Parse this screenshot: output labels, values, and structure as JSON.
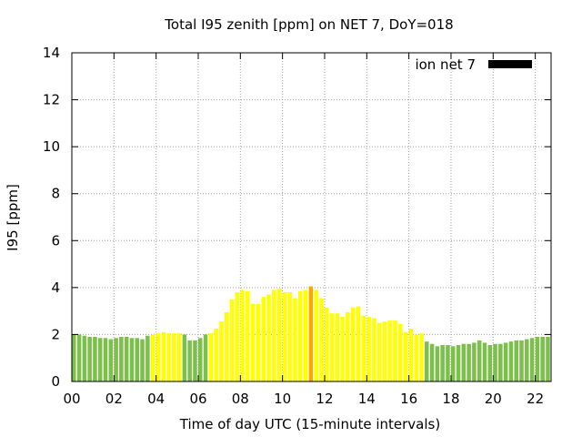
{
  "chart_data": {
    "type": "bar",
    "title": "Total I95 zenith [ppm] on NET 7, DoY=018",
    "xlabel": "Time of day UTC (15-minute intervals)",
    "ylabel": "I95 [ppm]",
    "xlim": [
      0,
      22.75
    ],
    "ylim": [
      0,
      14
    ],
    "x_ticks": [
      "00",
      "02",
      "04",
      "06",
      "08",
      "10",
      "12",
      "14",
      "16",
      "18",
      "20",
      "22"
    ],
    "y_ticks": [
      "0",
      "2",
      "4",
      "6",
      "8",
      "10",
      "12",
      "14"
    ],
    "grid": true,
    "legend": {
      "label": "ion net 7",
      "color": "#000000",
      "position": "top-right"
    },
    "colors": {
      "green": "#7cbf4a",
      "yellow": "#ffff00",
      "orange": "#ffa500"
    },
    "bar_interval_hours": 0.25,
    "bars": [
      {
        "x": 0.0,
        "value": 2.0,
        "color": "green"
      },
      {
        "x": 0.25,
        "value": 2.0,
        "color": "green"
      },
      {
        "x": 0.5,
        "value": 1.95,
        "color": "green"
      },
      {
        "x": 0.75,
        "value": 1.9,
        "color": "green"
      },
      {
        "x": 1.0,
        "value": 1.9,
        "color": "green"
      },
      {
        "x": 1.25,
        "value": 1.85,
        "color": "green"
      },
      {
        "x": 1.5,
        "value": 1.85,
        "color": "green"
      },
      {
        "x": 1.75,
        "value": 1.8,
        "color": "green"
      },
      {
        "x": 2.0,
        "value": 1.85,
        "color": "green"
      },
      {
        "x": 2.25,
        "value": 1.9,
        "color": "green"
      },
      {
        "x": 2.5,
        "value": 1.9,
        "color": "green"
      },
      {
        "x": 2.75,
        "value": 1.85,
        "color": "green"
      },
      {
        "x": 3.0,
        "value": 1.85,
        "color": "green"
      },
      {
        "x": 3.25,
        "value": 1.8,
        "color": "green"
      },
      {
        "x": 3.5,
        "value": 1.95,
        "color": "green"
      },
      {
        "x": 3.75,
        "value": 2.0,
        "color": "yellow"
      },
      {
        "x": 4.0,
        "value": 2.05,
        "color": "yellow"
      },
      {
        "x": 4.25,
        "value": 2.1,
        "color": "yellow"
      },
      {
        "x": 4.5,
        "value": 2.05,
        "color": "yellow"
      },
      {
        "x": 4.75,
        "value": 2.05,
        "color": "yellow"
      },
      {
        "x": 5.0,
        "value": 2.05,
        "color": "yellow"
      },
      {
        "x": 5.25,
        "value": 2.0,
        "color": "green"
      },
      {
        "x": 5.5,
        "value": 1.75,
        "color": "green"
      },
      {
        "x": 5.75,
        "value": 1.75,
        "color": "green"
      },
      {
        "x": 6.0,
        "value": 1.85,
        "color": "green"
      },
      {
        "x": 6.25,
        "value": 2.0,
        "color": "green"
      },
      {
        "x": 6.5,
        "value": 2.05,
        "color": "yellow"
      },
      {
        "x": 6.75,
        "value": 2.25,
        "color": "yellow"
      },
      {
        "x": 7.0,
        "value": 2.55,
        "color": "yellow"
      },
      {
        "x": 7.25,
        "value": 2.95,
        "color": "yellow"
      },
      {
        "x": 7.5,
        "value": 3.5,
        "color": "yellow"
      },
      {
        "x": 7.75,
        "value": 3.8,
        "color": "yellow"
      },
      {
        "x": 8.0,
        "value": 3.9,
        "color": "yellow"
      },
      {
        "x": 8.25,
        "value": 3.85,
        "color": "yellow"
      },
      {
        "x": 8.5,
        "value": 3.3,
        "color": "yellow"
      },
      {
        "x": 8.75,
        "value": 3.3,
        "color": "yellow"
      },
      {
        "x": 9.0,
        "value": 3.6,
        "color": "yellow"
      },
      {
        "x": 9.25,
        "value": 3.7,
        "color": "yellow"
      },
      {
        "x": 9.5,
        "value": 3.9,
        "color": "yellow"
      },
      {
        "x": 9.75,
        "value": 3.95,
        "color": "yellow"
      },
      {
        "x": 10.0,
        "value": 3.8,
        "color": "yellow"
      },
      {
        "x": 10.25,
        "value": 3.8,
        "color": "yellow"
      },
      {
        "x": 10.5,
        "value": 3.55,
        "color": "yellow"
      },
      {
        "x": 10.75,
        "value": 3.85,
        "color": "yellow"
      },
      {
        "x": 11.0,
        "value": 3.9,
        "color": "yellow"
      },
      {
        "x": 11.25,
        "value": 4.05,
        "color": "orange"
      },
      {
        "x": 11.5,
        "value": 3.9,
        "color": "yellow"
      },
      {
        "x": 11.75,
        "value": 3.55,
        "color": "yellow"
      },
      {
        "x": 12.0,
        "value": 3.15,
        "color": "yellow"
      },
      {
        "x": 12.25,
        "value": 2.9,
        "color": "yellow"
      },
      {
        "x": 12.5,
        "value": 2.9,
        "color": "yellow"
      },
      {
        "x": 12.75,
        "value": 2.75,
        "color": "yellow"
      },
      {
        "x": 13.0,
        "value": 2.95,
        "color": "yellow"
      },
      {
        "x": 13.25,
        "value": 3.15,
        "color": "yellow"
      },
      {
        "x": 13.5,
        "value": 3.2,
        "color": "yellow"
      },
      {
        "x": 13.75,
        "value": 2.8,
        "color": "yellow"
      },
      {
        "x": 14.0,
        "value": 2.75,
        "color": "yellow"
      },
      {
        "x": 14.25,
        "value": 2.7,
        "color": "yellow"
      },
      {
        "x": 14.5,
        "value": 2.5,
        "color": "yellow"
      },
      {
        "x": 14.75,
        "value": 2.55,
        "color": "yellow"
      },
      {
        "x": 15.0,
        "value": 2.6,
        "color": "yellow"
      },
      {
        "x": 15.25,
        "value": 2.6,
        "color": "yellow"
      },
      {
        "x": 15.5,
        "value": 2.45,
        "color": "yellow"
      },
      {
        "x": 15.75,
        "value": 2.1,
        "color": "yellow"
      },
      {
        "x": 16.0,
        "value": 2.25,
        "color": "yellow"
      },
      {
        "x": 16.25,
        "value": 2.0,
        "color": "yellow"
      },
      {
        "x": 16.5,
        "value": 2.05,
        "color": "yellow"
      },
      {
        "x": 16.75,
        "value": 1.7,
        "color": "green"
      },
      {
        "x": 17.0,
        "value": 1.6,
        "color": "green"
      },
      {
        "x": 17.25,
        "value": 1.5,
        "color": "green"
      },
      {
        "x": 17.5,
        "value": 1.55,
        "color": "green"
      },
      {
        "x": 17.75,
        "value": 1.55,
        "color": "green"
      },
      {
        "x": 18.0,
        "value": 1.5,
        "color": "green"
      },
      {
        "x": 18.25,
        "value": 1.55,
        "color": "green"
      },
      {
        "x": 18.5,
        "value": 1.6,
        "color": "green"
      },
      {
        "x": 18.75,
        "value": 1.6,
        "color": "green"
      },
      {
        "x": 19.0,
        "value": 1.65,
        "color": "green"
      },
      {
        "x": 19.25,
        "value": 1.75,
        "color": "green"
      },
      {
        "x": 19.5,
        "value": 1.65,
        "color": "green"
      },
      {
        "x": 19.75,
        "value": 1.55,
        "color": "green"
      },
      {
        "x": 20.0,
        "value": 1.6,
        "color": "green"
      },
      {
        "x": 20.25,
        "value": 1.6,
        "color": "green"
      },
      {
        "x": 20.5,
        "value": 1.65,
        "color": "green"
      },
      {
        "x": 20.75,
        "value": 1.7,
        "color": "green"
      },
      {
        "x": 21.0,
        "value": 1.75,
        "color": "green"
      },
      {
        "x": 21.25,
        "value": 1.75,
        "color": "green"
      },
      {
        "x": 21.5,
        "value": 1.8,
        "color": "green"
      },
      {
        "x": 21.75,
        "value": 1.85,
        "color": "green"
      },
      {
        "x": 22.0,
        "value": 1.9,
        "color": "green"
      },
      {
        "x": 22.25,
        "value": 1.9,
        "color": "green"
      },
      {
        "x": 22.5,
        "value": 1.9,
        "color": "green"
      }
    ]
  }
}
